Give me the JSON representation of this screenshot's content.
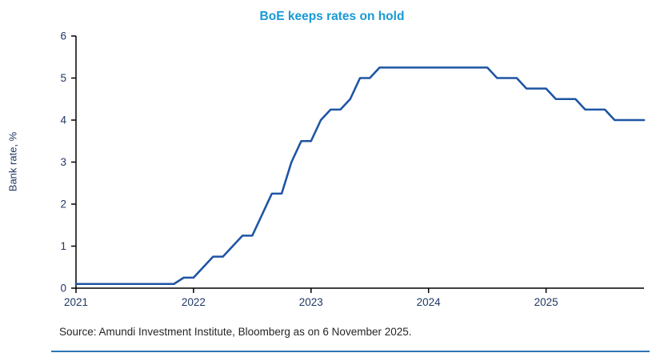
{
  "colors": {
    "accent_blue": "#1899d6",
    "line_navy": "#1f55a4",
    "axis_black": "#000000",
    "tick_label": "#1f3864",
    "divider_blue": "#2e74b5",
    "source_text": "#262626"
  },
  "chart_data": {
    "type": "line",
    "title": "BoE keeps rates on hold",
    "xlabel": "",
    "ylabel": "Bank rate, %",
    "ylim": [
      0,
      6
    ],
    "yticks": [
      0,
      1,
      2,
      3,
      4,
      5,
      6
    ],
    "grid": false,
    "legend": "none",
    "x_ticks": [
      {
        "index": 0,
        "label": "2021"
      },
      {
        "index": 12,
        "label": "2022"
      },
      {
        "index": 24,
        "label": "2023"
      },
      {
        "index": 36,
        "label": "2024"
      },
      {
        "index": 48,
        "label": "2025"
      }
    ],
    "categories": [
      "2021-01",
      "2021-02",
      "2021-03",
      "2021-04",
      "2021-05",
      "2021-06",
      "2021-07",
      "2021-08",
      "2021-09",
      "2021-10",
      "2021-11",
      "2021-12",
      "2022-01",
      "2022-02",
      "2022-03",
      "2022-04",
      "2022-05",
      "2022-06",
      "2022-07",
      "2022-08",
      "2022-09",
      "2022-10",
      "2022-11",
      "2022-12",
      "2023-01",
      "2023-02",
      "2023-03",
      "2023-04",
      "2023-05",
      "2023-06",
      "2023-07",
      "2023-08",
      "2023-09",
      "2023-10",
      "2023-11",
      "2023-12",
      "2024-01",
      "2024-02",
      "2024-03",
      "2024-04",
      "2024-05",
      "2024-06",
      "2024-07",
      "2024-08",
      "2024-09",
      "2024-10",
      "2024-11",
      "2024-12",
      "2025-01",
      "2025-02",
      "2025-03",
      "2025-04",
      "2025-05",
      "2025-06",
      "2025-07",
      "2025-08",
      "2025-09",
      "2025-10",
      "2025-11"
    ],
    "series": [
      {
        "name": "BoE bank rate, %",
        "values": [
          0.1,
          0.1,
          0.1,
          0.1,
          0.1,
          0.1,
          0.1,
          0.1,
          0.1,
          0.1,
          0.1,
          0.25,
          0.25,
          0.5,
          0.75,
          0.75,
          1.0,
          1.25,
          1.25,
          1.75,
          2.25,
          2.25,
          3.0,
          3.5,
          3.5,
          4.0,
          4.25,
          4.25,
          4.5,
          5.0,
          5.0,
          5.25,
          5.25,
          5.25,
          5.25,
          5.25,
          5.25,
          5.25,
          5.25,
          5.25,
          5.25,
          5.25,
          5.25,
          5.0,
          5.0,
          5.0,
          4.75,
          4.75,
          4.75,
          4.5,
          4.5,
          4.5,
          4.25,
          4.25,
          4.25,
          4.0,
          4.0,
          4.0,
          4.0
        ]
      }
    ],
    "source": "Source: Amundi Investment Institute, Bloomberg as on 6 November 2025."
  }
}
